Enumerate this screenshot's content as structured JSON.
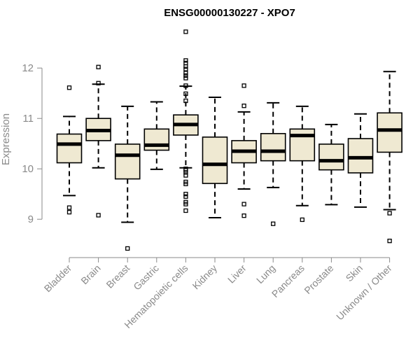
{
  "chart_data": {
    "type": "boxplot",
    "title": "ENSG00000130227 - XPO7",
    "ylabel": "Expression",
    "xlabel": "",
    "ylim": [
      8.35,
      12.85
    ],
    "yticks": [
      9,
      10,
      11,
      12
    ],
    "box_fill": "#efe9d2",
    "categories": [
      "Bladder",
      "Brain",
      "Breast",
      "Gastric",
      "Hematopoietic cells",
      "Kidney",
      "Liver",
      "Lung",
      "Pancreas",
      "Prostate",
      "Skin",
      "Unknown / Other"
    ],
    "boxes": [
      {
        "whisker_low": 9.47,
        "q1": 10.12,
        "median": 10.49,
        "q3": 10.69,
        "whisker_high": 11.04,
        "outliers": [
          11.61,
          9.23,
          9.14
        ]
      },
      {
        "whisker_low": 10.02,
        "q1": 10.56,
        "median": 10.76,
        "q3": 11.0,
        "whisker_high": 11.68,
        "outliers": [
          12.02,
          11.7,
          9.08
        ]
      },
      {
        "whisker_low": 8.94,
        "q1": 9.8,
        "median": 10.27,
        "q3": 10.49,
        "whisker_high": 11.24,
        "outliers": [
          8.42
        ]
      },
      {
        "whisker_low": 9.99,
        "q1": 10.37,
        "median": 10.47,
        "q3": 10.79,
        "whisker_high": 11.33,
        "outliers": []
      },
      {
        "whisker_low": 10.02,
        "q1": 10.67,
        "median": 10.88,
        "q3": 11.07,
        "whisker_high": 11.64,
        "outliers": [
          12.72,
          12.15,
          12.1,
          12.03,
          11.98,
          11.9,
          11.85,
          11.8,
          11.65,
          11.49,
          11.35,
          10.0,
          9.97,
          9.93,
          9.87,
          9.74,
          9.7,
          9.5,
          9.45,
          9.34,
          9.3,
          9.17
        ]
      },
      {
        "whisker_low": 9.03,
        "q1": 9.71,
        "median": 10.09,
        "q3": 10.63,
        "whisker_high": 11.42,
        "outliers": []
      },
      {
        "whisker_low": 9.6,
        "q1": 10.12,
        "median": 10.35,
        "q3": 10.56,
        "whisker_high": 11.13,
        "outliers": [
          11.65,
          11.25,
          9.3,
          9.07
        ]
      },
      {
        "whisker_low": 9.63,
        "q1": 10.16,
        "median": 10.35,
        "q3": 10.7,
        "whisker_high": 11.31,
        "outliers": [
          8.91
        ]
      },
      {
        "whisker_low": 9.27,
        "q1": 10.16,
        "median": 10.66,
        "q3": 10.79,
        "whisker_high": 11.24,
        "outliers": [
          8.99
        ]
      },
      {
        "whisker_low": 9.29,
        "q1": 9.98,
        "median": 10.16,
        "q3": 10.49,
        "whisker_high": 10.88,
        "outliers": []
      },
      {
        "whisker_low": 9.24,
        "q1": 9.92,
        "median": 10.22,
        "q3": 10.6,
        "whisker_high": 11.09,
        "outliers": []
      },
      {
        "whisker_low": 9.19,
        "q1": 10.33,
        "median": 10.77,
        "q3": 11.11,
        "whisker_high": 11.93,
        "outliers": [
          9.12,
          8.57
        ]
      }
    ]
  }
}
